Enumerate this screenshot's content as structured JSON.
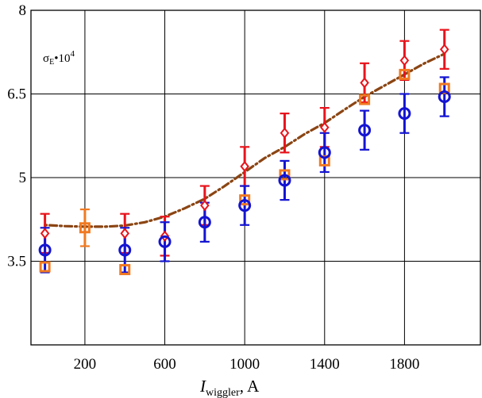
{
  "chart_data": {
    "type": "scatter",
    "title": "",
    "annotation": {
      "symbol": "σ",
      "subscript": "E",
      "suffix": "•10",
      "superscript": "4"
    },
    "xlabel": {
      "main": "I",
      "subscript": "wiggler",
      "unit": ", A"
    },
    "ylabel": "",
    "xlim": [
      -70,
      2180
    ],
    "ylim": [
      2.0,
      8.0
    ],
    "x_ticks": [
      200,
      600,
      1000,
      1400,
      1800
    ],
    "x_tick_labels": [
      "200",
      "600",
      "1000",
      "1400",
      "1800"
    ],
    "y_ticks": [
      3.5,
      5,
      6.5,
      8
    ],
    "y_tick_labels": [
      "3.5",
      "5",
      "6.5",
      "8"
    ],
    "grid": true,
    "legend": "none",
    "series": [
      {
        "marker": "diamond",
        "color": "#e8141c",
        "x": [
          0,
          400,
          600,
          800,
          1000,
          1200,
          1400,
          1600,
          1800,
          2000
        ],
        "y": [
          4.0,
          4.0,
          3.95,
          4.5,
          5.2,
          5.8,
          5.9,
          6.7,
          7.1,
          7.3
        ],
        "err": [
          0.35,
          0.35,
          0.35,
          0.35,
          0.35,
          0.35,
          0.35,
          0.35,
          0.35,
          0.35
        ]
      },
      {
        "marker": "square",
        "color": "#f07a22",
        "x": [
          0,
          200,
          400,
          1000,
          1200,
          1400,
          1600,
          1800,
          2000
        ],
        "y": [
          3.4,
          4.1,
          3.35,
          4.6,
          5.05,
          5.3,
          6.4,
          6.85,
          6.6
        ],
        "err": [
          null,
          0.33,
          null,
          null,
          null,
          null,
          null,
          null,
          null
        ]
      },
      {
        "marker": "circle",
        "color": "#1414d2",
        "x": [
          0,
          400,
          600,
          800,
          1000,
          1200,
          1400,
          1600,
          1800,
          2000
        ],
        "y": [
          3.7,
          3.7,
          3.85,
          4.2,
          4.5,
          4.95,
          5.45,
          5.85,
          6.15,
          6.45
        ],
        "err": [
          0.4,
          0.4,
          0.35,
          0.35,
          0.35,
          0.35,
          0.35,
          0.35,
          0.35,
          0.35
        ]
      },
      {
        "marker": "dash-dot line",
        "color": "#8b4513",
        "x": [
          0,
          100,
          200,
          300,
          400,
          500,
          600,
          700,
          800,
          900,
          1000,
          1100,
          1200,
          1300,
          1400,
          1500,
          1600,
          1700,
          1800,
          1900,
          2000
        ],
        "y": [
          4.15,
          4.13,
          4.12,
          4.12,
          4.14,
          4.2,
          4.3,
          4.45,
          4.62,
          4.85,
          5.1,
          5.35,
          5.55,
          5.78,
          5.98,
          6.22,
          6.45,
          6.65,
          6.85,
          7.05,
          7.22
        ]
      }
    ]
  }
}
